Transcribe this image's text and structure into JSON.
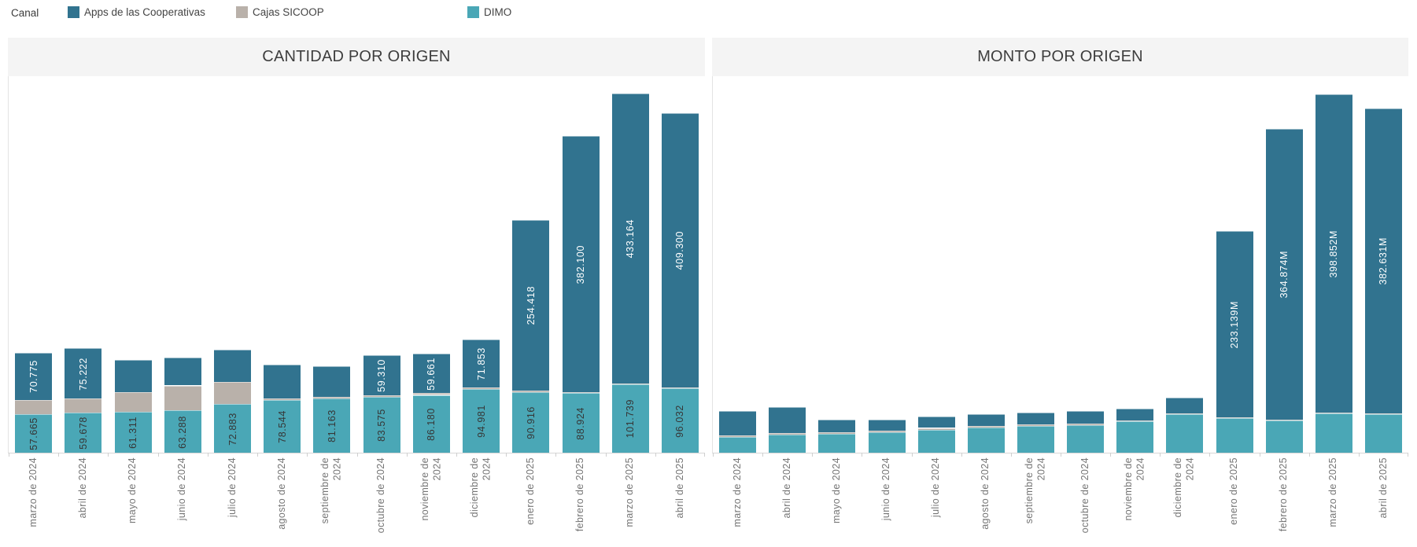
{
  "legend": {
    "title": "Canal",
    "items": [
      {
        "label": "Apps de las Cooperativas",
        "color": "#31738f"
      },
      {
        "label": "Cajas SICOOP",
        "color": "#b9b1aa"
      },
      {
        "label": "DIMO",
        "color": "#4aa7b6"
      }
    ]
  },
  "chart_data": [
    {
      "type": "bar",
      "stacked": true,
      "title": "CANTIDAD POR ORIGEN",
      "xlabel": "",
      "ylabel": "",
      "y_axis_visible": false,
      "grid": false,
      "ylim": [
        0,
        562000
      ],
      "categories": [
        "marzo de 2024",
        "abril de 2024",
        "mayo de 2024",
        "junio de 2024",
        "julio de 2024",
        "agosto de 2024",
        "septiembre de\n2024",
        "octubre de 2024",
        "noviembre de\n2024",
        "diciembre de\n2024",
        "enero de 2025",
        "febrero de 2025",
        "marzo de 2025",
        "abril de 2025"
      ],
      "series": [
        {
          "name": "DIMO",
          "color": "#4aa7b6",
          "label_color": "#363636",
          "values": [
            57665,
            59678,
            61311,
            63288,
            72883,
            78544,
            81163,
            83575,
            86180,
            94981,
            90916,
            88924,
            101739,
            96032
          ],
          "labels": [
            "57.665",
            "59.678",
            "61.311",
            "63.288",
            "72.883",
            "78.544",
            "81.163",
            "83.575",
            "86.180",
            "94.981",
            "90.916",
            "88.924",
            "101.739",
            "96.032"
          ]
        },
        {
          "name": "Cajas SICOOP",
          "color": "#b9b1aa",
          "label_color": "#363636",
          "values": [
            21000,
            21000,
            29000,
            37000,
            33000,
            2500,
            2500,
            2500,
            2500,
            2000,
            1800,
            1800,
            1800,
            1800
          ],
          "labels": [
            "",
            "",
            "",
            "",
            "",
            "",
            "",
            "",
            "",
            "",
            "",
            "",
            "",
            ""
          ]
        },
        {
          "name": "Apps de las Cooperativas",
          "color": "#31738f",
          "label_color": "#ffffff",
          "values": [
            70775,
            75222,
            48000,
            42000,
            48000,
            50000,
            46000,
            59310,
            59661,
            71853,
            254418,
            382100,
            433164,
            409300
          ],
          "labels": [
            "70.775",
            "75.222",
            "",
            "",
            "",
            "",
            "",
            "59.310",
            "59.661",
            "71.853",
            "254.418",
            "382.100",
            "433.164",
            "409.300"
          ]
        }
      ]
    },
    {
      "type": "bar",
      "stacked": true,
      "title": "MONTO POR ORIGEN",
      "xlabel": "",
      "ylabel": "",
      "y_axis_visible": false,
      "grid": false,
      "unit": "M",
      "ylim": [
        0,
        472
      ],
      "categories": [
        "marzo de 2024",
        "abril de 2024",
        "mayo de 2024",
        "junio de 2024",
        "julio de 2024",
        "agosto de 2024",
        "septiembre de\n2024",
        "octubre de 2024",
        "noviembre de\n2024",
        "diciembre de\n2024",
        "enero de 2025",
        "febrero de 2025",
        "marzo de 2025",
        "abril de 2025"
      ],
      "series": [
        {
          "name": "DIMO",
          "color": "#4aa7b6",
          "label_color": "#363636",
          "values": [
            20,
            23,
            24,
            26,
            29,
            32,
            34,
            35,
            39,
            48,
            43,
            40,
            49,
            48
          ],
          "labels": [
            "",
            "",
            "",
            "",
            "",
            "",
            "",
            "",
            "",
            "",
            "",
            "",
            "",
            ""
          ]
        },
        {
          "name": "Cajas SICOOP",
          "color": "#b9b1aa",
          "label_color": "#363636",
          "values": [
            2,
            2,
            2,
            2,
            2,
            1.5,
            1.5,
            1.5,
            1.5,
            1.5,
            1.5,
            1.5,
            1.5,
            1.5
          ],
          "labels": [
            "",
            "",
            "",
            "",
            "",
            "",
            "",
            "",
            "",
            "",
            "",
            "",
            "",
            ""
          ]
        },
        {
          "name": "Apps de las Cooperativas",
          "color": "#31738f",
          "label_color": "#ffffff",
          "values": [
            30,
            32,
            15,
            13,
            14,
            15,
            15,
            16,
            15,
            20,
            233.139,
            364.874,
            398.852,
            382.631
          ],
          "labels": [
            "",
            "",
            "",
            "",
            "",
            "",
            "",
            "",
            "",
            "",
            "233.139M",
            "364.874M",
            "398.852M",
            "382.631M"
          ]
        }
      ]
    }
  ]
}
